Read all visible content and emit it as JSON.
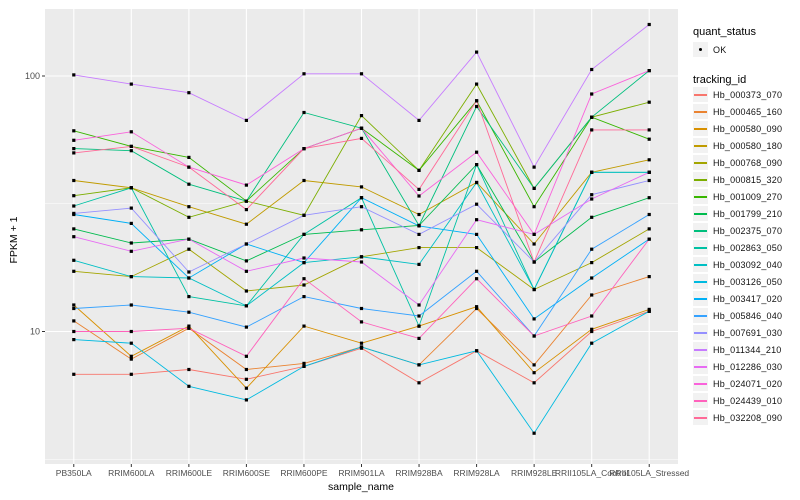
{
  "figure": {
    "y_axis": {
      "label": "FPKM + 1",
      "ticks": [
        "100",
        "10"
      ]
    },
    "x_axis": {
      "label": "sample_name"
    },
    "legend": {
      "quant_status": {
        "title": "quant_status",
        "items": [
          {
            "label": "OK",
            "marker": "point-black"
          }
        ]
      },
      "tracking_id": {
        "title": "tracking_id"
      }
    }
  },
  "chart_data": {
    "type": "line",
    "x_type": "categorical",
    "y_scale": "log10",
    "xlabel": "sample_name",
    "ylabel": "FPKM + 1",
    "y_ticks": [
      100,
      10
    ],
    "y_minor_gridlines": [
      31.623,
      3.1623
    ],
    "ylim": [
      3.0,
      185
    ],
    "panel_bg": "#EBEBEB",
    "gridline_color": "#FFFFFF",
    "point_color": "#000000",
    "legend_position": "right",
    "categories": [
      "PB350LA",
      "RRIM600LA",
      "RRIM600LE",
      "RRIM600SE",
      "RRIM600PE",
      "RRIM901LA",
      "RRIM928BA",
      "RRIM928LA",
      "RRIM928LE",
      "RRII105LA_Control",
      "RRII105LA_Stressed"
    ],
    "series": [
      {
        "name": "Hb_000373_070",
        "color": "#F8766D",
        "values": [
          6.8,
          6.8,
          7.1,
          6.5,
          7.3,
          8.6,
          6.3,
          8.4,
          6.3,
          10.0,
          12.0
        ]
      },
      {
        "name": "Hb_000465_160",
        "color": "#EA8331",
        "values": [
          11.0,
          7.8,
          10.3,
          7.1,
          7.5,
          8.7,
          7.4,
          12.3,
          7.4,
          13.9,
          16.4
        ]
      },
      {
        "name": "Hb_000580_090",
        "color": "#D89000",
        "values": [
          12.7,
          8.0,
          10.5,
          6.0,
          10.5,
          9.0,
          10.5,
          12.5,
          6.9,
          10.2,
          12.2
        ]
      },
      {
        "name": "Hb_000580_180",
        "color": "#C09B00",
        "values": [
          39.0,
          36.5,
          30.8,
          26.3,
          39.0,
          36.8,
          28.7,
          38.3,
          22.0,
          42.0,
          47.0
        ]
      },
      {
        "name": "Hb_000768_090",
        "color": "#A3A500",
        "values": [
          17.2,
          16.4,
          21.0,
          14.4,
          15.2,
          19.6,
          21.3,
          21.3,
          14.6,
          18.6,
          25.2
        ]
      },
      {
        "name": "Hb_000815_320",
        "color": "#7CAE00",
        "values": [
          34.0,
          36.5,
          28.0,
          32.4,
          28.5,
          70.0,
          42.7,
          93.0,
          36.3,
          69.0,
          79.0
        ]
      },
      {
        "name": "Hb_001009_270",
        "color": "#39B600",
        "values": [
          61.0,
          53.0,
          48.0,
          32.4,
          52.0,
          62.5,
          42.7,
          80.0,
          30.8,
          69.0,
          56.6
        ]
      },
      {
        "name": "Hb_001799_210",
        "color": "#00BB4E",
        "values": [
          25.2,
          22.2,
          23.0,
          18.9,
          24.0,
          25.0,
          26.0,
          45.0,
          18.7,
          28.0,
          33.4
        ]
      },
      {
        "name": "Hb_002375_070",
        "color": "#00BF7D",
        "values": [
          52.0,
          51.0,
          37.7,
          32.4,
          72.0,
          62.5,
          26.0,
          76.0,
          36.3,
          69.0,
          105.0
        ]
      },
      {
        "name": "Hb_002863_050",
        "color": "#00C1A3",
        "values": [
          31.0,
          36.5,
          13.7,
          12.6,
          24.0,
          33.4,
          10.5,
          45.0,
          14.6,
          42.0,
          42.0
        ]
      },
      {
        "name": "Hb_003092_040",
        "color": "#00BFC4",
        "values": [
          19.0,
          16.4,
          16.2,
          12.6,
          18.6,
          19.6,
          18.3,
          38.3,
          14.6,
          42.0,
          42.0
        ]
      },
      {
        "name": "Hb_003126_050",
        "color": "#00BAE0",
        "values": [
          9.3,
          9.0,
          6.1,
          5.4,
          7.3,
          8.7,
          7.4,
          8.4,
          4.0,
          9.0,
          12.0
        ]
      },
      {
        "name": "Hb_003417_020",
        "color": "#00B0F6",
        "values": [
          28.7,
          26.5,
          16.2,
          22.0,
          18.6,
          33.4,
          25.9,
          24.0,
          11.2,
          16.2,
          23.0
        ]
      },
      {
        "name": "Hb_005846_040",
        "color": "#35A2FF",
        "values": [
          12.3,
          12.7,
          11.9,
          10.4,
          13.7,
          12.3,
          11.5,
          17.2,
          9.6,
          21.0,
          28.7
        ]
      },
      {
        "name": "Hb_007691_030",
        "color": "#9590FF",
        "values": [
          29.0,
          30.4,
          17.1,
          22.0,
          28.5,
          30.8,
          24.0,
          31.5,
          18.7,
          34.3,
          39.0
        ]
      },
      {
        "name": "Hb_011344_210",
        "color": "#C77CFF",
        "values": [
          101.0,
          93.0,
          86.0,
          67.0,
          102.0,
          102.0,
          67.0,
          124.0,
          44.0,
          106.0,
          159.0
        ]
      },
      {
        "name": "Hb_012286_030",
        "color": "#E76BF3",
        "values": [
          23.5,
          20.6,
          23.0,
          17.2,
          19.4,
          18.7,
          12.7,
          27.4,
          24.0,
          33.0,
          42.0
        ]
      },
      {
        "name": "Hb_024071_020",
        "color": "#FA62DB",
        "values": [
          56.0,
          60.5,
          44.0,
          37.4,
          52.0,
          62.5,
          33.9,
          50.3,
          24.0,
          85.0,
          105.0
        ]
      },
      {
        "name": "Hb_024439_010",
        "color": "#FF62BC",
        "values": [
          10.0,
          10.0,
          10.3,
          8.0,
          16.1,
          10.9,
          9.4,
          16.1,
          9.6,
          11.5,
          23.0
        ]
      },
      {
        "name": "Hb_032208_090",
        "color": "#FF6A98",
        "values": [
          50.0,
          53.0,
          44.0,
          30.0,
          52.0,
          57.0,
          36.0,
          80.0,
          18.7,
          61.5,
          61.5
        ]
      }
    ]
  }
}
